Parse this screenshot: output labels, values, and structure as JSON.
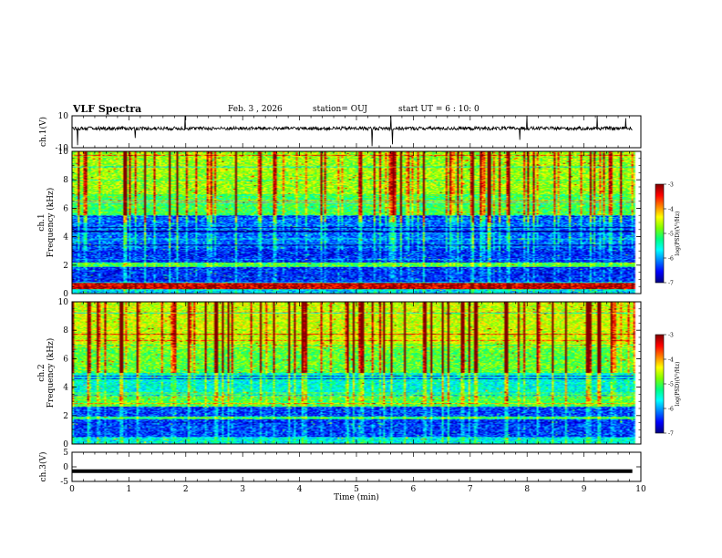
{
  "header": {
    "title": "VLF Spectra",
    "date": "Feb. 3 , 2026",
    "station": "station= OUJ",
    "start": "start UT = 6 : 10: 0"
  },
  "chart_data": [
    {
      "type": "line",
      "ylabel": "ch.1(V)",
      "ylim": [
        -10,
        10
      ],
      "y_ticks": [
        "10",
        "-10"
      ],
      "note": "noisy broadband waveform centered slightly above zero with sparse short spikes"
    },
    {
      "type": "heatmap",
      "ylabel": "ch.1\nFrequency (kHz)",
      "ylim": [
        0,
        10
      ],
      "y_ticks": [
        "0",
        "2",
        "4",
        "6",
        "8",
        "10"
      ],
      "xlim": [
        0,
        9.85
      ],
      "colorbar": {
        "label": "log(PSD)(V²/Hz)",
        "range": [
          -7,
          -3
        ],
        "ticks": [
          "-3",
          "-4",
          "-5",
          "-6",
          "-7"
        ]
      }
    },
    {
      "type": "heatmap",
      "ylabel": "ch.2\nFrequency (kHz)",
      "ylim": [
        0,
        10
      ],
      "y_ticks": [
        "0",
        "2",
        "4",
        "6",
        "8",
        "10"
      ],
      "xlim": [
        0,
        9.85
      ],
      "colorbar": {
        "label": "log(PSD)(V²/Hz)",
        "range": [
          -7,
          -3
        ],
        "ticks": [
          "-3",
          "-4",
          "-5",
          "-6",
          "-7"
        ]
      }
    },
    {
      "type": "line",
      "ylabel": "ch.3(V)",
      "ylim": [
        -5,
        5
      ],
      "y_ticks": [
        "5",
        "0",
        "-5"
      ],
      "x": [
        0,
        9.85
      ],
      "y": [
        -1.5,
        -1.5
      ]
    }
  ],
  "x_axis": {
    "label": "Time (min)",
    "range": [
      0,
      10
    ],
    "ticks": [
      "0",
      "1",
      "2",
      "3",
      "4",
      "5",
      "6",
      "7",
      "8",
      "9",
      "10"
    ]
  },
  "colors": {
    "scale": [
      "#000080",
      "#0000ff",
      "#0080ff",
      "#00ffff",
      "#00ff80",
      "#80ff00",
      "#ffff00",
      "#ff8000",
      "#ff0000",
      "#800000"
    ]
  }
}
